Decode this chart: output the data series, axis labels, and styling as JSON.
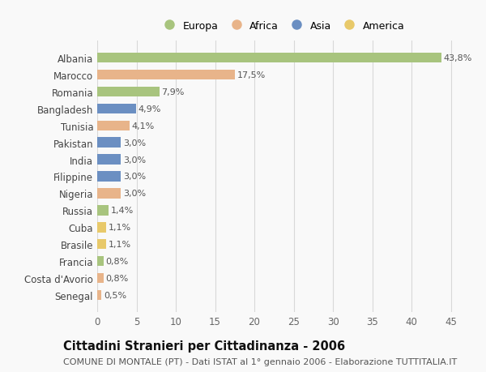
{
  "countries": [
    "Albania",
    "Marocco",
    "Romania",
    "Bangladesh",
    "Tunisia",
    "Pakistan",
    "India",
    "Filippine",
    "Nigeria",
    "Russia",
    "Cuba",
    "Brasile",
    "Francia",
    "Costa d'Avorio",
    "Senegal"
  ],
  "values": [
    43.8,
    17.5,
    7.9,
    4.9,
    4.1,
    3.0,
    3.0,
    3.0,
    3.0,
    1.4,
    1.1,
    1.1,
    0.8,
    0.8,
    0.5
  ],
  "labels": [
    "43,8%",
    "17,5%",
    "7,9%",
    "4,9%",
    "4,1%",
    "3,0%",
    "3,0%",
    "3,0%",
    "3,0%",
    "1,4%",
    "1,1%",
    "1,1%",
    "0,8%",
    "0,8%",
    "0,5%"
  ],
  "continents": [
    "Europa",
    "Africa",
    "Europa",
    "Asia",
    "Africa",
    "Asia",
    "Asia",
    "Asia",
    "Africa",
    "Europa",
    "America",
    "America",
    "Europa",
    "Africa",
    "Africa"
  ],
  "colors": {
    "Europa": "#a8c47e",
    "Africa": "#e8b48a",
    "Asia": "#6b8fc2",
    "America": "#e8c96a"
  },
  "xlim": [
    0,
    47
  ],
  "xticks": [
    0,
    5,
    10,
    15,
    20,
    25,
    30,
    35,
    40,
    45
  ],
  "title": "Cittadini Stranieri per Cittadinanza - 2006",
  "subtitle": "COMUNE DI MONTALE (PT) - Dati ISTAT al 1° gennaio 2006 - Elaborazione TUTTITALIA.IT",
  "background_color": "#f9f9f9",
  "grid_color": "#d8d8d8",
  "bar_height": 0.6,
  "label_fontsize": 8.0,
  "tick_fontsize": 8.5,
  "title_fontsize": 10.5,
  "subtitle_fontsize": 8.0,
  "legend_order": [
    "Europa",
    "Africa",
    "Asia",
    "America"
  ]
}
